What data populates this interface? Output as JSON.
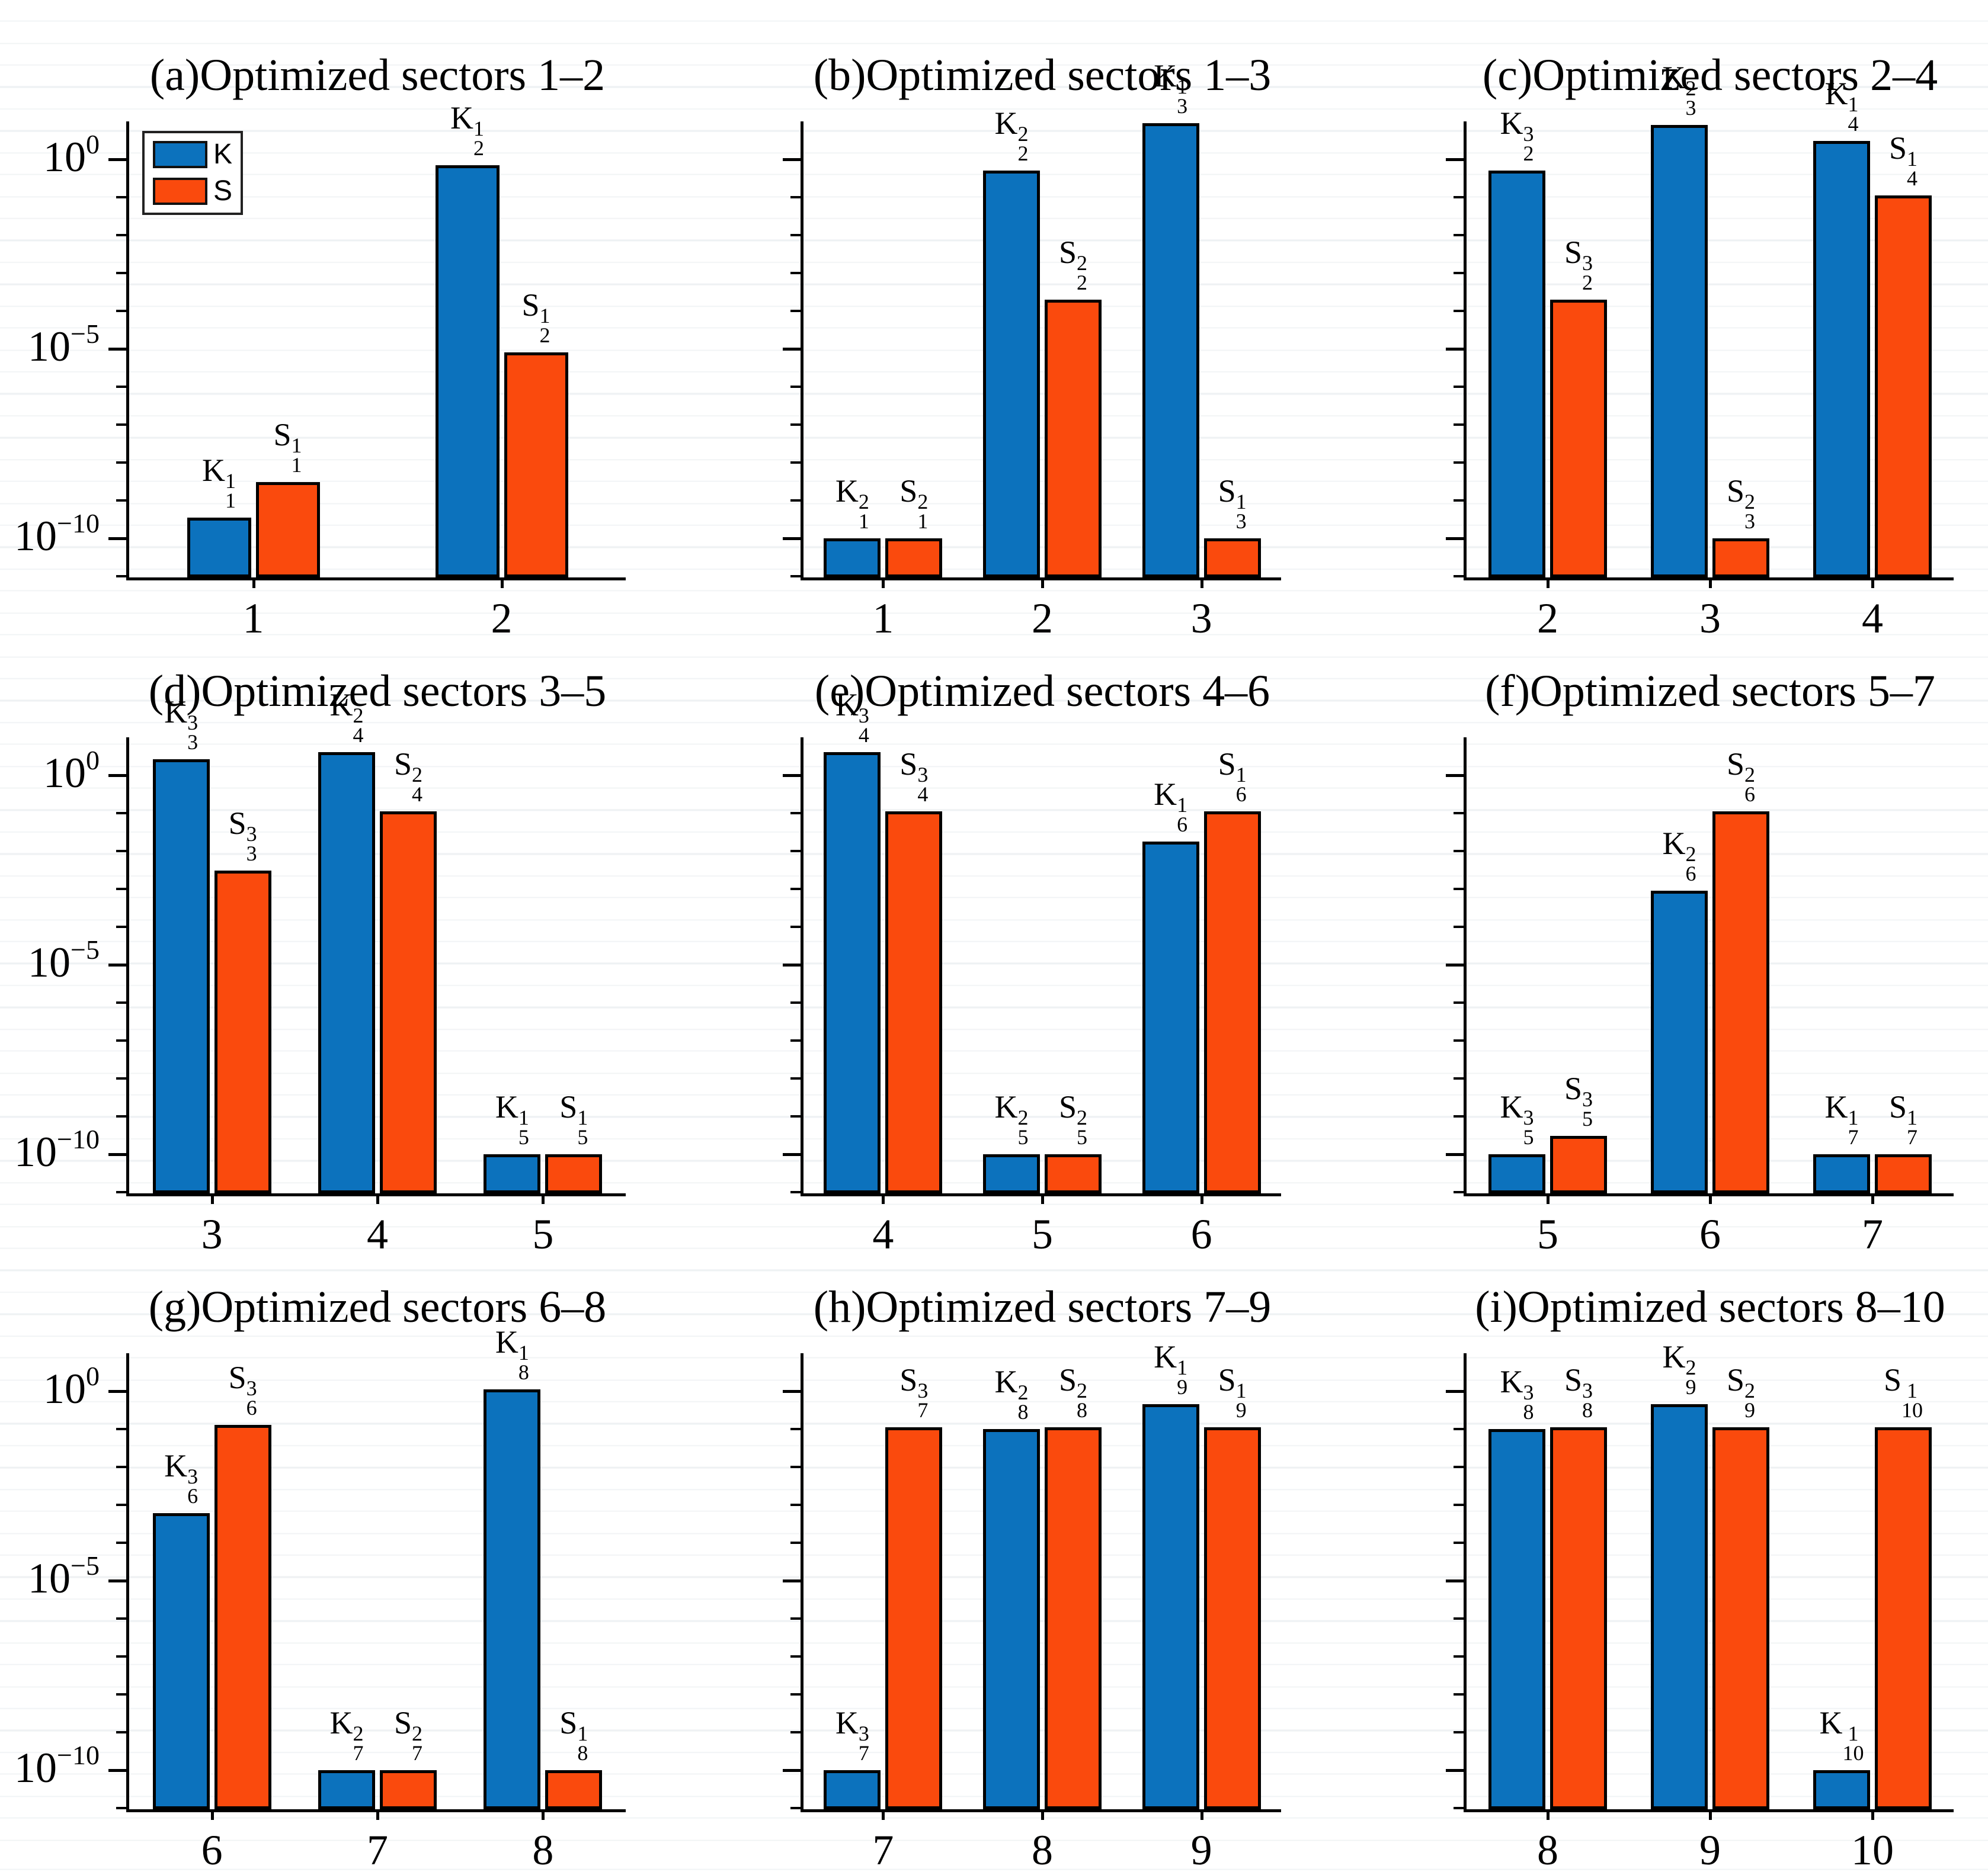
{
  "colors": {
    "K": "#0c72bd",
    "S": "#fa4a0d",
    "outline": "#000000",
    "stripe": "#eef1f3"
  },
  "legend": {
    "items": [
      {
        "label": "K"
      },
      {
        "label": "S"
      }
    ]
  },
  "y_axis": {
    "scale": "log",
    "ymax_log": 1.0,
    "ymin_log": -11.03,
    "major_ticks": [
      {
        "base": "10",
        "sup": "0",
        "log": 0
      },
      {
        "base": "10",
        "sup": "−5",
        "log": -5
      },
      {
        "base": "10",
        "sup": "−10",
        "log": -10
      }
    ]
  },
  "chart_data": [
    {
      "type": "bar",
      "panel": "a",
      "title": "(a)Optimized sectors 1–2",
      "categories": [
        "1",
        "2"
      ],
      "show_y_labels": true,
      "show_legend": true,
      "series": [
        {
          "name": "K",
          "values": [
            3.5e-10,
            0.7
          ],
          "labels": [
            {
              "b": "K",
              "sub": "1",
              "sup": "1"
            },
            {
              "b": "K",
              "sub": "2",
              "sup": "1"
            }
          ]
        },
        {
          "name": "S",
          "values": [
            3e-09,
            8e-06
          ],
          "labels": [
            {
              "b": "S",
              "sub": "1",
              "sup": "1"
            },
            {
              "b": "S",
              "sub": "2",
              "sup": "1"
            }
          ]
        }
      ]
    },
    {
      "type": "bar",
      "panel": "b",
      "title": "(b)Optimized sectors 1–3",
      "categories": [
        "1",
        "2",
        "3"
      ],
      "show_y_labels": false,
      "show_legend": false,
      "series": [
        {
          "name": "K",
          "values": [
            1e-10,
            0.5,
            9
          ],
          "labels": [
            {
              "b": "K",
              "sub": "1",
              "sup": "2"
            },
            {
              "b": "K",
              "sub": "2",
              "sup": "2"
            },
            {
              "b": "K",
              "sub": "3",
              "sup": "1"
            }
          ]
        },
        {
          "name": "S",
          "values": [
            1e-10,
            0.0002,
            1e-10
          ],
          "labels": [
            {
              "b": "S",
              "sub": "1",
              "sup": "2"
            },
            {
              "b": "S",
              "sub": "2",
              "sup": "2"
            },
            {
              "b": "S",
              "sub": "3",
              "sup": "1"
            }
          ]
        }
      ]
    },
    {
      "type": "bar",
      "panel": "c",
      "title": "(c)Optimized sectors 2–4",
      "categories": [
        "2",
        "3",
        "4"
      ],
      "show_y_labels": false,
      "show_legend": false,
      "series": [
        {
          "name": "K",
          "values": [
            0.5,
            8,
            3
          ],
          "labels": [
            {
              "b": "K",
              "sub": "2",
              "sup": "3"
            },
            {
              "b": "K",
              "sub": "3",
              "sup": "2"
            },
            {
              "b": "K",
              "sub": "4",
              "sup": "1"
            }
          ]
        },
        {
          "name": "S",
          "values": [
            0.0002,
            1e-10,
            0.11
          ],
          "labels": [
            {
              "b": "S",
              "sub": "2",
              "sup": "3"
            },
            {
              "b": "S",
              "sub": "3",
              "sup": "2"
            },
            {
              "b": "S",
              "sub": "4",
              "sup": "1"
            }
          ]
        }
      ]
    },
    {
      "type": "bar",
      "panel": "d",
      "title": "(d)Optimized sectors 3–5",
      "categories": [
        "3",
        "4",
        "5"
      ],
      "show_y_labels": true,
      "show_legend": false,
      "series": [
        {
          "name": "K",
          "values": [
            2.6,
            4,
            1e-10
          ],
          "labels": [
            {
              "b": "K",
              "sub": "3",
              "sup": "3"
            },
            {
              "b": "K",
              "sub": "4",
              "sup": "2"
            },
            {
              "b": "K",
              "sub": "5",
              "sup": "1"
            }
          ]
        },
        {
          "name": "S",
          "values": [
            0.003,
            0.11,
            1e-10
          ],
          "labels": [
            {
              "b": "S",
              "sub": "3",
              "sup": "3"
            },
            {
              "b": "S",
              "sub": "4",
              "sup": "2"
            },
            {
              "b": "S",
              "sub": "5",
              "sup": "1"
            }
          ]
        }
      ]
    },
    {
      "type": "bar",
      "panel": "e",
      "title": "(e)Optimized sectors 4–6",
      "categories": [
        "4",
        "5",
        "6"
      ],
      "show_y_labels": false,
      "show_legend": false,
      "series": [
        {
          "name": "K",
          "values": [
            4,
            1e-10,
            0.018
          ],
          "labels": [
            {
              "b": "K",
              "sub": "4",
              "sup": "3"
            },
            {
              "b": "K",
              "sub": "5",
              "sup": "2"
            },
            {
              "b": "K",
              "sub": "6",
              "sup": "1"
            }
          ]
        },
        {
          "name": "S",
          "values": [
            0.11,
            1e-10,
            0.11
          ],
          "labels": [
            {
              "b": "S",
              "sub": "4",
              "sup": "3"
            },
            {
              "b": "S",
              "sub": "5",
              "sup": "2"
            },
            {
              "b": "S",
              "sub": "6",
              "sup": "1"
            }
          ]
        }
      ]
    },
    {
      "type": "bar",
      "panel": "f",
      "title": "(f)Optimized sectors 5–7",
      "categories": [
        "5",
        "6",
        "7"
      ],
      "show_y_labels": false,
      "show_legend": false,
      "series": [
        {
          "name": "K",
          "values": [
            1e-10,
            0.0009,
            1e-10
          ],
          "labels": [
            {
              "b": "K",
              "sub": "5",
              "sup": "3"
            },
            {
              "b": "K",
              "sub": "6",
              "sup": "2"
            },
            {
              "b": "K",
              "sub": "7",
              "sup": "1"
            }
          ]
        },
        {
          "name": "S",
          "values": [
            3e-10,
            0.11,
            1e-10
          ],
          "labels": [
            {
              "b": "S",
              "sub": "5",
              "sup": "3"
            },
            {
              "b": "S",
              "sub": "6",
              "sup": "2"
            },
            {
              "b": "S",
              "sub": "7",
              "sup": "1"
            }
          ]
        }
      ]
    },
    {
      "type": "bar",
      "panel": "g",
      "title": "(g)Optimized sectors 6–8",
      "categories": [
        "6",
        "7",
        "8"
      ],
      "show_y_labels": true,
      "show_legend": false,
      "series": [
        {
          "name": "K",
          "values": [
            0.0006,
            1e-10,
            1.1
          ],
          "labels": [
            {
              "b": "K",
              "sub": "6",
              "sup": "3"
            },
            {
              "b": "K",
              "sub": "7",
              "sup": "2"
            },
            {
              "b": "K",
              "sub": "8",
              "sup": "1"
            }
          ]
        },
        {
          "name": "S",
          "values": [
            0.13,
            1e-10,
            1e-10
          ],
          "labels": [
            {
              "b": "S",
              "sub": "6",
              "sup": "3"
            },
            {
              "b": "S",
              "sub": "7",
              "sup": "2"
            },
            {
              "b": "S",
              "sub": "8",
              "sup": "1"
            }
          ]
        }
      ]
    },
    {
      "type": "bar",
      "panel": "h",
      "title": "(h)Optimized sectors 7–9",
      "categories": [
        "7",
        "8",
        "9"
      ],
      "show_y_labels": false,
      "show_legend": false,
      "series": [
        {
          "name": "K",
          "values": [
            1e-10,
            0.1,
            0.45
          ],
          "labels": [
            {
              "b": "K",
              "sub": "7",
              "sup": "3"
            },
            {
              "b": "K",
              "sub": "8",
              "sup": "2"
            },
            {
              "b": "K",
              "sub": "9",
              "sup": "1"
            }
          ]
        },
        {
          "name": "S",
          "values": [
            0.11,
            0.11,
            0.11
          ],
          "labels": [
            {
              "b": "S",
              "sub": "7",
              "sup": "3"
            },
            {
              "b": "S",
              "sub": "8",
              "sup": "2"
            },
            {
              "b": "S",
              "sub": "9",
              "sup": "1"
            }
          ]
        }
      ]
    },
    {
      "type": "bar",
      "panel": "i",
      "title": "(i)Optimized sectors 8–10",
      "categories": [
        "8",
        "9",
        "10"
      ],
      "show_y_labels": false,
      "show_legend": false,
      "series": [
        {
          "name": "K",
          "values": [
            0.1,
            0.45,
            1e-10
          ],
          "labels": [
            {
              "b": "K",
              "sub": "8",
              "sup": "3"
            },
            {
              "b": "K",
              "sub": "9",
              "sup": "2"
            },
            {
              "b": "K",
              "sub": "10",
              "sup": "1"
            }
          ]
        },
        {
          "name": "S",
          "values": [
            0.11,
            0.11,
            0.11
          ],
          "labels": [
            {
              "b": "S",
              "sub": "8",
              "sup": "3"
            },
            {
              "b": "S",
              "sub": "9",
              "sup": "2"
            },
            {
              "b": "S",
              "sub": "10",
              "sup": "1"
            }
          ]
        }
      ]
    }
  ]
}
